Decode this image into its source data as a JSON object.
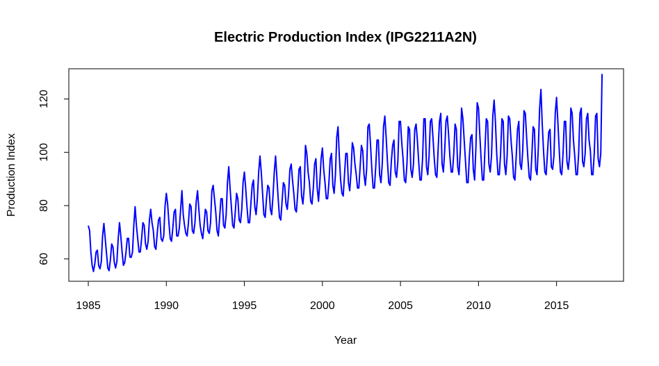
{
  "chart_data": {
    "type": "line",
    "title": "Electric Production Index (IPG2211A2N)",
    "xlabel": "Year",
    "ylabel": "Production Index",
    "xlim": [
      1985,
      2018
    ],
    "ylim": [
      55,
      129
    ],
    "x_ticks": [
      1985,
      1990,
      1995,
      2000,
      2005,
      2010,
      2015
    ],
    "y_ticks": [
      60,
      80,
      100,
      120
    ],
    "x_tick_labels": [
      "1985",
      "1990",
      "1995",
      "2000",
      "2005",
      "2010",
      "2015"
    ],
    "y_tick_labels": [
      "60",
      "80",
      "100",
      "120"
    ],
    "grid": false,
    "line_color": "#0000ff",
    "x_start": 1985.0,
    "x_step": 0.08333,
    "series": [
      {
        "values": [
          72.5,
          70.7,
          62.5,
          57.5,
          55.3,
          58.1,
          62.6,
          63.3,
          57.5,
          56.3,
          58.9,
          68.6,
          73.3,
          67.8,
          62.1,
          56.6,
          55.6,
          59.7,
          65.6,
          64.4,
          58.7,
          56.6,
          59.0,
          67.6,
          73.6,
          68.6,
          62.6,
          57.6,
          58.6,
          62.6,
          67.7,
          67.7,
          60.7,
          60.6,
          62.6,
          72.6,
          79.6,
          72.6,
          67.6,
          62.6,
          62.6,
          67.6,
          73.6,
          72.6,
          65.6,
          63.6,
          66.6,
          74.6,
          78.6,
          73.6,
          70.6,
          64.6,
          63.6,
          69.6,
          74.6,
          75.6,
          67.6,
          66.6,
          68.6,
          79.6,
          84.6,
          80.6,
          73.6,
          67.6,
          66.6,
          71.6,
          77.6,
          78.6,
          68.6,
          68.6,
          71.6,
          78.6,
          85.6,
          76.6,
          72.6,
          69.6,
          68.6,
          73.6,
          80.6,
          79.6,
          70.6,
          69.6,
          73.6,
          81.6,
          85.6,
          78.6,
          72.6,
          69.6,
          67.6,
          72.6,
          78.6,
          77.6,
          70.6,
          69.6,
          73.6,
          85.6,
          87.6,
          82.6,
          77.6,
          70.6,
          68.6,
          75.6,
          82.6,
          82.6,
          72.6,
          71.6,
          76.6,
          88.6,
          94.6,
          86.6,
          79.6,
          72.6,
          71.6,
          77.6,
          84.6,
          82.6,
          74.6,
          73.6,
          78.6,
          88.6,
          92.6,
          86.6,
          79.6,
          73.6,
          73.6,
          80.6,
          87.6,
          89.6,
          79.6,
          76.6,
          82.6,
          92.6,
          98.6,
          92.6,
          84.6,
          76.6,
          75.6,
          82.6,
          87.6,
          86.6,
          78.6,
          76.6,
          83.6,
          92.6,
          98.6,
          90.6,
          82.6,
          75.6,
          74.6,
          81.6,
          88.6,
          87.6,
          80.6,
          78.6,
          84.6,
          93.6,
          95.6,
          89.6,
          84.6,
          78.6,
          77.6,
          84.6,
          93.6,
          94.6,
          83.6,
          80.6,
          86.6,
          102.6,
          99.6,
          92.6,
          88.6,
          81.6,
          80.6,
          86.6,
          95.6,
          97.6,
          86.6,
          81.6,
          88.6,
          97.6,
          101.6,
          93.6,
          88.6,
          82.6,
          82.6,
          88.6,
          97.6,
          99.6,
          87.6,
          84.6,
          91.6,
          105.6,
          109.6,
          98.6,
          89.6,
          84.6,
          83.6,
          91.6,
          99.6,
          99.6,
          88.6,
          85.6,
          92.6,
          103.6,
          101.6,
          95.6,
          91.6,
          86.6,
          86.6,
          94.6,
          102.6,
          100.6,
          91.6,
          87.6,
          93.6,
          109.6,
          110.6,
          102.6,
          93.6,
          86.6,
          86.6,
          94.6,
          104.6,
          104.6,
          91.6,
          88.6,
          95.6,
          109.6,
          113.6,
          105.6,
          96.6,
          88.6,
          87.6,
          96.6,
          102.6,
          104.6,
          92.6,
          90.6,
          96.6,
          111.6,
          111.6,
          103.6,
          97.6,
          89.6,
          88.6,
          95.6,
          109.6,
          108.6,
          93.6,
          90.6,
          95.6,
          108.6,
          110.6,
          104.6,
          96.6,
          89.6,
          89.6,
          97.6,
          112.6,
          112.6,
          94.6,
          91.6,
          98.6,
          111.6,
          112.6,
          105.6,
          97.6,
          91.6,
          90.6,
          101.6,
          111.6,
          114.6,
          95.6,
          92.6,
          100.6,
          111.6,
          113.6,
          106.6,
          98.6,
          92.6,
          92.6,
          99.6,
          110.6,
          108.6,
          94.6,
          91.6,
          100.6,
          116.6,
          112.6,
          104.6,
          96.6,
          88.6,
          88.6,
          98.6,
          105.6,
          106.6,
          93.6,
          89.6,
          101.6,
          118.6,
          116.6,
          106.6,
          97.6,
          89.6,
          89.6,
          101.6,
          112.6,
          111.6,
          95.6,
          92.6,
          98.6,
          113.6,
          119.6,
          111.6,
          99.6,
          91.6,
          91.6,
          99.6,
          112.6,
          111.6,
          95.6,
          91.6,
          98.6,
          113.6,
          112.6,
          104.6,
          98.6,
          90.6,
          89.6,
          98.6,
          108.6,
          111.6,
          95.6,
          93.6,
          100.6,
          115.6,
          114.6,
          105.6,
          97.6,
          90.6,
          89.6,
          98.6,
          109.6,
          108.6,
          93.6,
          91.6,
          101.6,
          116.6,
          123.6,
          110.6,
          100.6,
          92.6,
          91.6,
          99.6,
          107.6,
          108.6,
          94.6,
          93.6,
          98.6,
          114.6,
          120.6,
          111.6,
          101.6,
          92.6,
          91.6,
          99.6,
          111.6,
          111.6,
          96.6,
          93.6,
          98.6,
          116.6,
          114.6,
          104.6,
          98.6,
          91.6,
          91.6,
          99.6,
          114.6,
          116.6,
          96.6,
          94.6,
          99.6,
          112.6,
          114.6,
          104.6,
          100.6,
          91.6,
          91.6,
          99.6,
          113.6,
          114.6,
          97.6,
          94.6,
          99.6,
          129.4
        ]
      }
    ]
  }
}
